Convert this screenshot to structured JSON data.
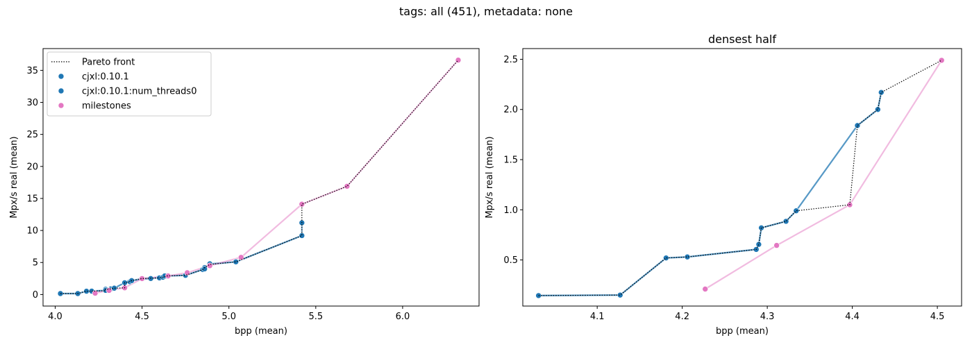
{
  "figure": {
    "suptitle": "tags: all (451), metadata: none"
  },
  "colors": {
    "series_blue": "#1f77b4",
    "milestones": "#e377c2",
    "pareto": "#000000"
  },
  "chart_data": [
    {
      "type": "line",
      "title": "",
      "xlabel": "bpp (mean)",
      "ylabel": "Mpx/s real (mean)",
      "xlim": [
        3.93,
        6.44
      ],
      "ylim": [
        -1.8,
        38.4
      ],
      "xticks": [
        4.0,
        4.5,
        5.0,
        5.5,
        6.0
      ],
      "xtick_labels": [
        "4.0",
        "4.5",
        "5.0",
        "5.5",
        "6.0"
      ],
      "yticks": [
        0,
        5,
        10,
        15,
        20,
        25,
        30,
        35
      ],
      "ytick_labels": [
        "0",
        "5",
        "10",
        "15",
        "20",
        "25",
        "30",
        "35"
      ],
      "legend_position": "top-left",
      "legend": [
        {
          "label": "Pareto front",
          "kind": "dotted-line",
          "color": "#000000"
        },
        {
          "label": "cjxl:0.10.1",
          "kind": "marker",
          "color": "#1f77b4"
        },
        {
          "label": "cjxl:0.10.1:num_threads0",
          "kind": "marker",
          "color": "#1f77b4"
        },
        {
          "label": "milestones",
          "kind": "marker",
          "color": "#e377c2"
        }
      ],
      "series": [
        {
          "name": "cjxl:0.10.1",
          "color": "#1f77b4",
          "points": [
            [
              4.03,
              0.15
            ],
            [
              4.13,
              0.15
            ],
            [
              4.18,
              0.52
            ],
            [
              4.21,
              0.53
            ],
            [
              4.29,
              0.6
            ],
            [
              4.29,
              0.65
            ],
            [
              4.29,
              0.82
            ],
            [
              4.32,
              0.88
            ],
            [
              4.34,
              0.99
            ],
            [
              4.4,
              1.84
            ],
            [
              4.43,
              2.0
            ],
            [
              4.44,
              2.17
            ],
            [
              4.5,
              2.49
            ],
            [
              4.6,
              2.6
            ],
            [
              4.62,
              2.7
            ],
            [
              4.64,
              2.9
            ],
            [
              4.75,
              3.0
            ],
            [
              4.85,
              3.9
            ],
            [
              4.86,
              4.2
            ],
            [
              4.89,
              4.7
            ],
            [
              5.04,
              5.1
            ],
            [
              5.42,
              9.2
            ]
          ]
        },
        {
          "name": "cjxl:0.10.1:num_threads0",
          "color": "#1f77b4",
          "points": [
            [
              4.03,
              0.15
            ],
            [
              4.13,
              0.15
            ],
            [
              4.18,
              0.52
            ],
            [
              4.29,
              0.65
            ],
            [
              4.34,
              0.99
            ],
            [
              4.4,
              1.84
            ],
            [
              4.44,
              2.17
            ],
            [
              4.55,
              2.5
            ],
            [
              4.63,
              2.9
            ],
            [
              4.75,
              3.0
            ],
            [
              4.86,
              4.0
            ],
            [
              4.89,
              4.8
            ],
            [
              5.04,
              5.1
            ],
            [
              5.42,
              9.2
            ],
            [
              5.42,
              11.2
            ]
          ]
        },
        {
          "name": "milestones",
          "color": "#e377c2",
          "points": [
            [
              4.23,
              0.21
            ],
            [
              4.31,
              0.64
            ],
            [
              4.4,
              1.05
            ],
            [
              4.5,
              2.49
            ],
            [
              4.65,
              2.9
            ],
            [
              4.76,
              3.4
            ],
            [
              4.89,
              4.5
            ],
            [
              5.07,
              5.8
            ],
            [
              5.42,
              14.1
            ],
            [
              5.68,
              16.9
            ],
            [
              6.32,
              36.6
            ]
          ]
        },
        {
          "name": "Pareto front",
          "color": "#000000",
          "points": [
            [
              4.03,
              0.15
            ],
            [
              4.13,
              0.15
            ],
            [
              4.18,
              0.52
            ],
            [
              4.21,
              0.53
            ],
            [
              4.29,
              0.6
            ],
            [
              4.29,
              0.65
            ],
            [
              4.29,
              0.82
            ],
            [
              4.32,
              0.88
            ],
            [
              4.34,
              0.99
            ],
            [
              4.4,
              1.05
            ],
            [
              4.4,
              1.84
            ],
            [
              4.43,
              2.0
            ],
            [
              4.44,
              2.17
            ],
            [
              4.5,
              2.49
            ],
            [
              4.6,
              2.6
            ],
            [
              4.62,
              2.7
            ],
            [
              4.64,
              2.9
            ],
            [
              4.75,
              3.0
            ],
            [
              4.85,
              3.9
            ],
            [
              4.86,
              4.2
            ],
            [
              4.89,
              4.7
            ],
            [
              5.04,
              5.1
            ],
            [
              5.42,
              9.2
            ],
            [
              5.42,
              11.2
            ],
            [
              5.42,
              14.1
            ],
            [
              5.68,
              16.9
            ],
            [
              6.32,
              36.6
            ]
          ]
        }
      ]
    },
    {
      "type": "line",
      "title": "densest half",
      "xlabel": "bpp (mean)",
      "ylabel": "Mpx/s real (mean)",
      "xlim": [
        4.0125,
        4.5285
      ],
      "ylim": [
        0.0405,
        2.6068
      ],
      "xticks": [
        4.1,
        4.2,
        4.3,
        4.4,
        4.5
      ],
      "xtick_labels": [
        "4.1",
        "4.2",
        "4.3",
        "4.4",
        "4.5"
      ],
      "yticks": [
        0.5,
        1.0,
        1.5,
        2.0,
        2.5
      ],
      "ytick_labels": [
        "0.5",
        "1.0",
        "1.5",
        "2.0",
        "2.5"
      ],
      "series": [
        {
          "name": "cjxl:0.10.1",
          "color": "#1f77b4",
          "points": [
            [
              4.031,
              0.145
            ],
            [
              4.127,
              0.15
            ],
            [
              4.181,
              0.52
            ],
            [
              4.206,
              0.53
            ],
            [
              4.287,
              0.605
            ],
            [
              4.29,
              0.655
            ],
            [
              4.293,
              0.82
            ],
            [
              4.322,
              0.885
            ],
            [
              4.334,
              0.99
            ],
            [
              4.406,
              1.84
            ],
            [
              4.43,
              2.0
            ],
            [
              4.434,
              2.17
            ]
          ]
        },
        {
          "name": "cjxl:0.10.1:num_threads0",
          "color": "#1f77b4",
          "points": [
            [
              4.031,
              0.145
            ],
            [
              4.127,
              0.15
            ],
            [
              4.181,
              0.52
            ],
            [
              4.206,
              0.53
            ],
            [
              4.287,
              0.605
            ],
            [
              4.29,
              0.655
            ],
            [
              4.293,
              0.82
            ],
            [
              4.322,
              0.885
            ],
            [
              4.334,
              0.99
            ],
            [
              4.406,
              1.84
            ],
            [
              4.43,
              2.0
            ],
            [
              4.434,
              2.17
            ]
          ]
        },
        {
          "name": "milestones",
          "color": "#e377c2",
          "points": [
            [
              4.227,
              0.21
            ],
            [
              4.311,
              0.645
            ],
            [
              4.397,
              1.05
            ],
            [
              4.505,
              2.49
            ]
          ]
        },
        {
          "name": "Pareto front",
          "color": "#000000",
          "points": [
            [
              4.031,
              0.145
            ],
            [
              4.127,
              0.15
            ],
            [
              4.181,
              0.52
            ],
            [
              4.206,
              0.53
            ],
            [
              4.287,
              0.605
            ],
            [
              4.29,
              0.655
            ],
            [
              4.293,
              0.82
            ],
            [
              4.322,
              0.885
            ],
            [
              4.334,
              0.99
            ],
            [
              4.397,
              1.05
            ],
            [
              4.406,
              1.84
            ],
            [
              4.43,
              2.0
            ],
            [
              4.434,
              2.17
            ],
            [
              4.505,
              2.49
            ]
          ]
        }
      ]
    }
  ]
}
